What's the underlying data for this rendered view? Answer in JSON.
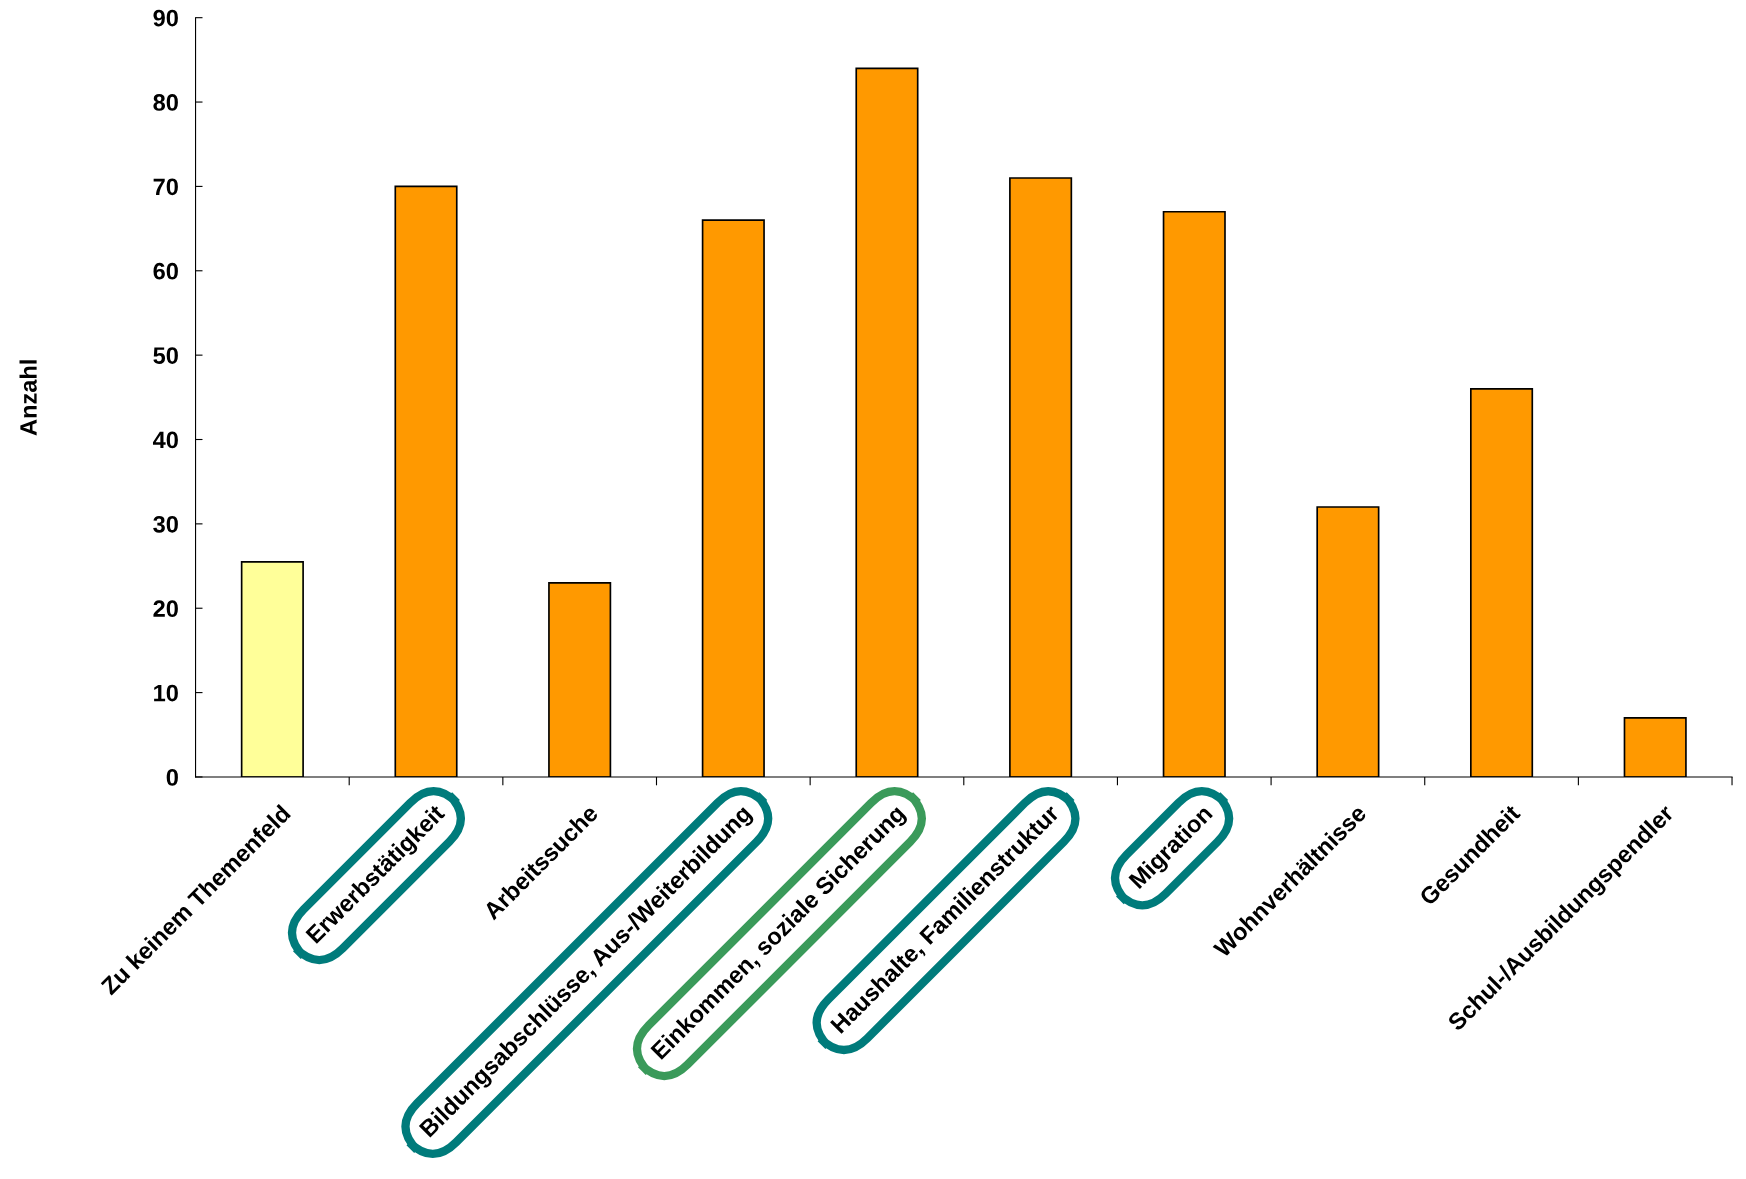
{
  "chart_data": {
    "type": "bar",
    "ylabel": "Anzahl",
    "categories": [
      "Zu keinem Themenfeld",
      "Erwerbstätigkeit",
      "Arbeitssuche",
      "Bildungsabschlüsse, Aus-/Weiterbildung",
      "Einkommen, soziale Sicherung",
      "Haushalte, Familienstruktur",
      "Migration",
      "Wohnverhältnisse",
      "Gesundheit",
      "Schul-/Ausbildungspendler"
    ],
    "values": [
      25.5,
      70,
      23,
      66,
      84,
      71,
      67,
      32,
      46,
      7
    ],
    "colors": [
      "#ffff99",
      "#ff9900",
      "#ff9900",
      "#ff9900",
      "#ff9900",
      "#ff9900",
      "#ff9900",
      "#ff9900",
      "#ff9900",
      "#ff9900"
    ],
    "ylim": [
      0,
      90
    ],
    "yticks": [
      0,
      10,
      20,
      30,
      40,
      50,
      60,
      70,
      80,
      90
    ],
    "grid": false,
    "legend": false
  }
}
